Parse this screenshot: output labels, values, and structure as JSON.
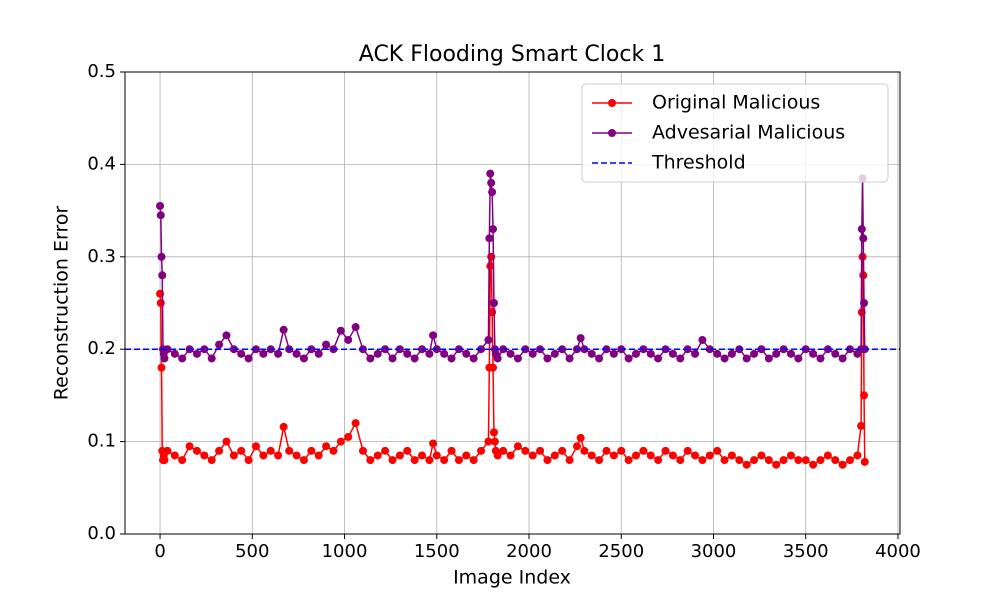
{
  "chart_data": {
    "type": "line",
    "title": "ACK Flooding Smart Clock 1",
    "xlabel": "Image Index",
    "ylabel": "Reconstruction Error",
    "x": [
      0,
      4,
      8,
      12,
      16,
      20,
      24,
      40,
      80,
      120,
      160,
      200,
      240,
      280,
      320,
      360,
      400,
      440,
      480,
      520,
      560,
      600,
      640,
      670,
      700,
      740,
      780,
      820,
      860,
      900,
      940,
      980,
      1020,
      1060,
      1100,
      1140,
      1180,
      1220,
      1260,
      1300,
      1340,
      1380,
      1420,
      1460,
      1480,
      1500,
      1540,
      1580,
      1620,
      1660,
      1700,
      1740,
      1780,
      1785,
      1790,
      1795,
      1800,
      1805,
      1810,
      1815,
      1820,
      1830,
      1860,
      1900,
      1940,
      1980,
      2020,
      2060,
      2100,
      2140,
      2180,
      2220,
      2260,
      2280,
      2300,
      2340,
      2380,
      2420,
      2460,
      2500,
      2540,
      2580,
      2620,
      2660,
      2700,
      2740,
      2780,
      2820,
      2860,
      2900,
      2940,
      2980,
      3020,
      3060,
      3100,
      3140,
      3180,
      3220,
      3260,
      3300,
      3340,
      3380,
      3420,
      3460,
      3500,
      3540,
      3580,
      3620,
      3660,
      3700,
      3740,
      3780,
      3800,
      3804,
      3808,
      3812,
      3816,
      3820
    ],
    "series": [
      {
        "name": "Original Malicious",
        "color": "#ff0000",
        "values": [
          0.26,
          0.25,
          0.18,
          0.09,
          0.08,
          0.085,
          0.08,
          0.09,
          0.085,
          0.08,
          0.095,
          0.09,
          0.085,
          0.08,
          0.09,
          0.1,
          0.085,
          0.09,
          0.08,
          0.095,
          0.085,
          0.09,
          0.085,
          0.116,
          0.09,
          0.085,
          0.08,
          0.09,
          0.085,
          0.095,
          0.09,
          0.1,
          0.105,
          0.12,
          0.09,
          0.08,
          0.085,
          0.09,
          0.08,
          0.085,
          0.09,
          0.08,
          0.085,
          0.08,
          0.098,
          0.085,
          0.08,
          0.09,
          0.08,
          0.085,
          0.08,
          0.09,
          0.1,
          0.18,
          0.29,
          0.3,
          0.24,
          0.18,
          0.11,
          0.1,
          0.09,
          0.085,
          0.09,
          0.085,
          0.095,
          0.09,
          0.085,
          0.09,
          0.08,
          0.085,
          0.09,
          0.08,
          0.095,
          0.104,
          0.09,
          0.085,
          0.08,
          0.09,
          0.085,
          0.09,
          0.08,
          0.085,
          0.09,
          0.085,
          0.08,
          0.09,
          0.085,
          0.08,
          0.09,
          0.085,
          0.08,
          0.085,
          0.09,
          0.08,
          0.085,
          0.08,
          0.075,
          0.08,
          0.085,
          0.08,
          0.075,
          0.08,
          0.085,
          0.08,
          0.08,
          0.075,
          0.08,
          0.085,
          0.08,
          0.075,
          0.08,
          0.085,
          0.117,
          0.24,
          0.3,
          0.28,
          0.15,
          0.078
        ]
      },
      {
        "name": "Advesarial Malicious",
        "color": "#800080",
        "values": [
          0.355,
          0.345,
          0.3,
          0.28,
          0.2,
          0.195,
          0.19,
          0.2,
          0.195,
          0.19,
          0.2,
          0.195,
          0.2,
          0.19,
          0.205,
          0.215,
          0.2,
          0.195,
          0.19,
          0.2,
          0.195,
          0.2,
          0.195,
          0.221,
          0.2,
          0.195,
          0.19,
          0.2,
          0.195,
          0.205,
          0.2,
          0.22,
          0.21,
          0.224,
          0.2,
          0.19,
          0.195,
          0.2,
          0.19,
          0.2,
          0.195,
          0.19,
          0.2,
          0.195,
          0.215,
          0.2,
          0.195,
          0.19,
          0.2,
          0.195,
          0.19,
          0.2,
          0.21,
          0.32,
          0.39,
          0.38,
          0.37,
          0.33,
          0.25,
          0.2,
          0.195,
          0.19,
          0.2,
          0.195,
          0.19,
          0.2,
          0.195,
          0.2,
          0.19,
          0.195,
          0.2,
          0.19,
          0.2,
          0.212,
          0.2,
          0.195,
          0.19,
          0.2,
          0.195,
          0.2,
          0.19,
          0.195,
          0.2,
          0.195,
          0.19,
          0.2,
          0.195,
          0.19,
          0.2,
          0.195,
          0.21,
          0.2,
          0.195,
          0.19,
          0.195,
          0.2,
          0.19,
          0.195,
          0.2,
          0.19,
          0.195,
          0.2,
          0.195,
          0.19,
          0.2,
          0.195,
          0.19,
          0.2,
          0.195,
          0.19,
          0.2,
          0.195,
          0.2,
          0.33,
          0.385,
          0.32,
          0.25,
          0.2
        ]
      }
    ],
    "threshold": {
      "name": "Threshold",
      "color": "#0000ff",
      "value": 0.2,
      "linestyle": "dashed"
    },
    "xlim": [
      -190,
      4011
    ],
    "ylim": [
      0,
      0.5
    ],
    "xticks": [
      0,
      500,
      1000,
      1500,
      2000,
      2500,
      3000,
      3500,
      4000
    ],
    "yticks": [
      {
        "value": 0,
        "label": "0.0"
      },
      0.1,
      0.2,
      0.3,
      0.4,
      0.5
    ],
    "grid": true,
    "legend": "upper right"
  }
}
